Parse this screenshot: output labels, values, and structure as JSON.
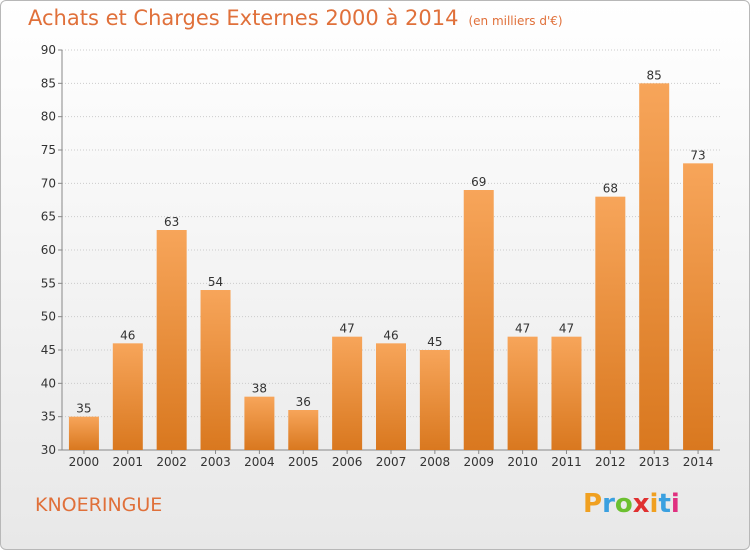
{
  "header": {
    "title": "Achats et Charges Externes 2000 à 2014",
    "unit": "(en milliers d'€)"
  },
  "footer": {
    "commune": "KNOERINGUE",
    "brand_letters": [
      "P",
      "r",
      "o",
      "x",
      "i",
      "t",
      "i"
    ],
    "brand_colors": [
      "#f0a020",
      "#3aa0e0",
      "#6cc030",
      "#e03030",
      "#f0a020",
      "#3aa0e0",
      "#e03080"
    ]
  },
  "colors": {
    "bar_top": "#f7a55a",
    "bar_bottom": "#d9781f",
    "grid": "#cccccc",
    "text": "#333333",
    "title": "#e0703a"
  },
  "chart_data": {
    "type": "bar",
    "categories": [
      "2000",
      "2001",
      "2002",
      "2003",
      "2004",
      "2005",
      "2006",
      "2007",
      "2008",
      "2009",
      "2010",
      "2011",
      "2012",
      "2013",
      "2014"
    ],
    "values": [
      35,
      46,
      63,
      54,
      38,
      36,
      47,
      46,
      45,
      69,
      47,
      47,
      68,
      85,
      73
    ],
    "ylim": [
      30,
      90
    ],
    "yticks": [
      30,
      35,
      40,
      45,
      50,
      55,
      60,
      65,
      70,
      75,
      80,
      85,
      90
    ],
    "grid": true,
    "data_labels": true
  }
}
